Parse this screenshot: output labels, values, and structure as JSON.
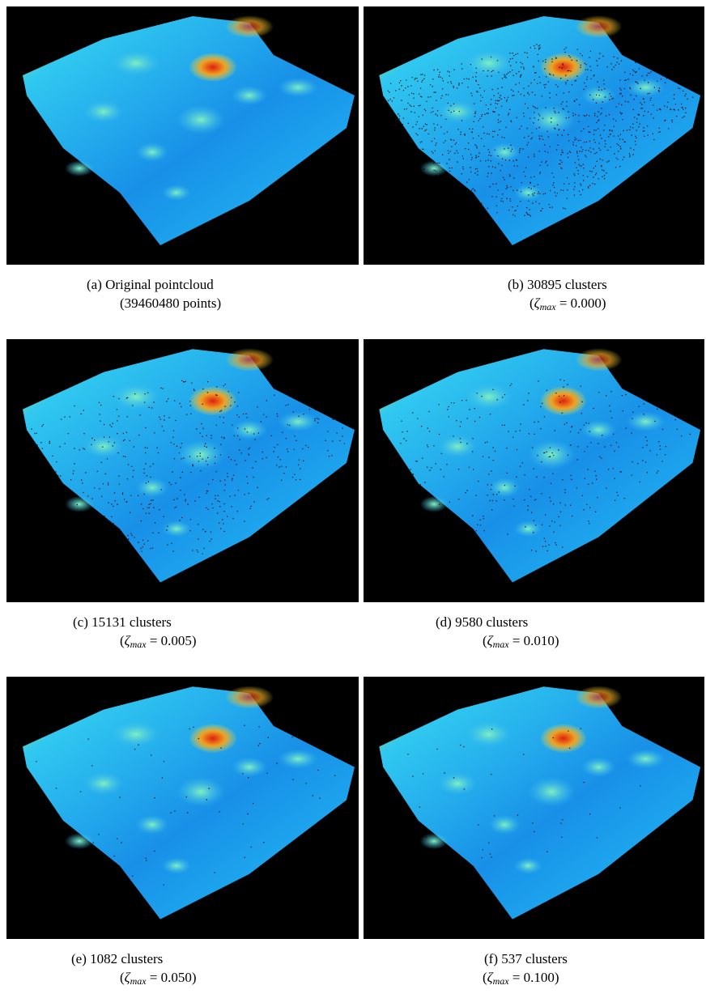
{
  "panels": [
    {
      "caption": "(a) Original pointcloud",
      "note": "(39460480 points)"
    },
    {
      "caption": "(b) 30895 clusters",
      "zeta": {
        "before": "(",
        "symbol": "ζ",
        "sub": "max",
        "after": " = 0.000)"
      }
    },
    {
      "caption": "(c) 15131 clusters",
      "zeta": {
        "before": "(",
        "symbol": "ζ",
        "sub": "max",
        "after": " = 0.005)"
      }
    },
    {
      "caption": "(d) 9580 clusters",
      "zeta": {
        "before": "(",
        "symbol": "ζ",
        "sub": "max",
        "after": " = 0.010)"
      }
    },
    {
      "caption": "(e) 1082 clusters",
      "zeta": {
        "before": "(",
        "symbol": "ζ",
        "sub": "max",
        "after": " = 0.050)"
      }
    },
    {
      "caption": "(f) 537 clusters",
      "zeta": {
        "before": "(",
        "symbol": "ζ",
        "sub": "max",
        "after": " = 0.100)"
      }
    }
  ]
}
